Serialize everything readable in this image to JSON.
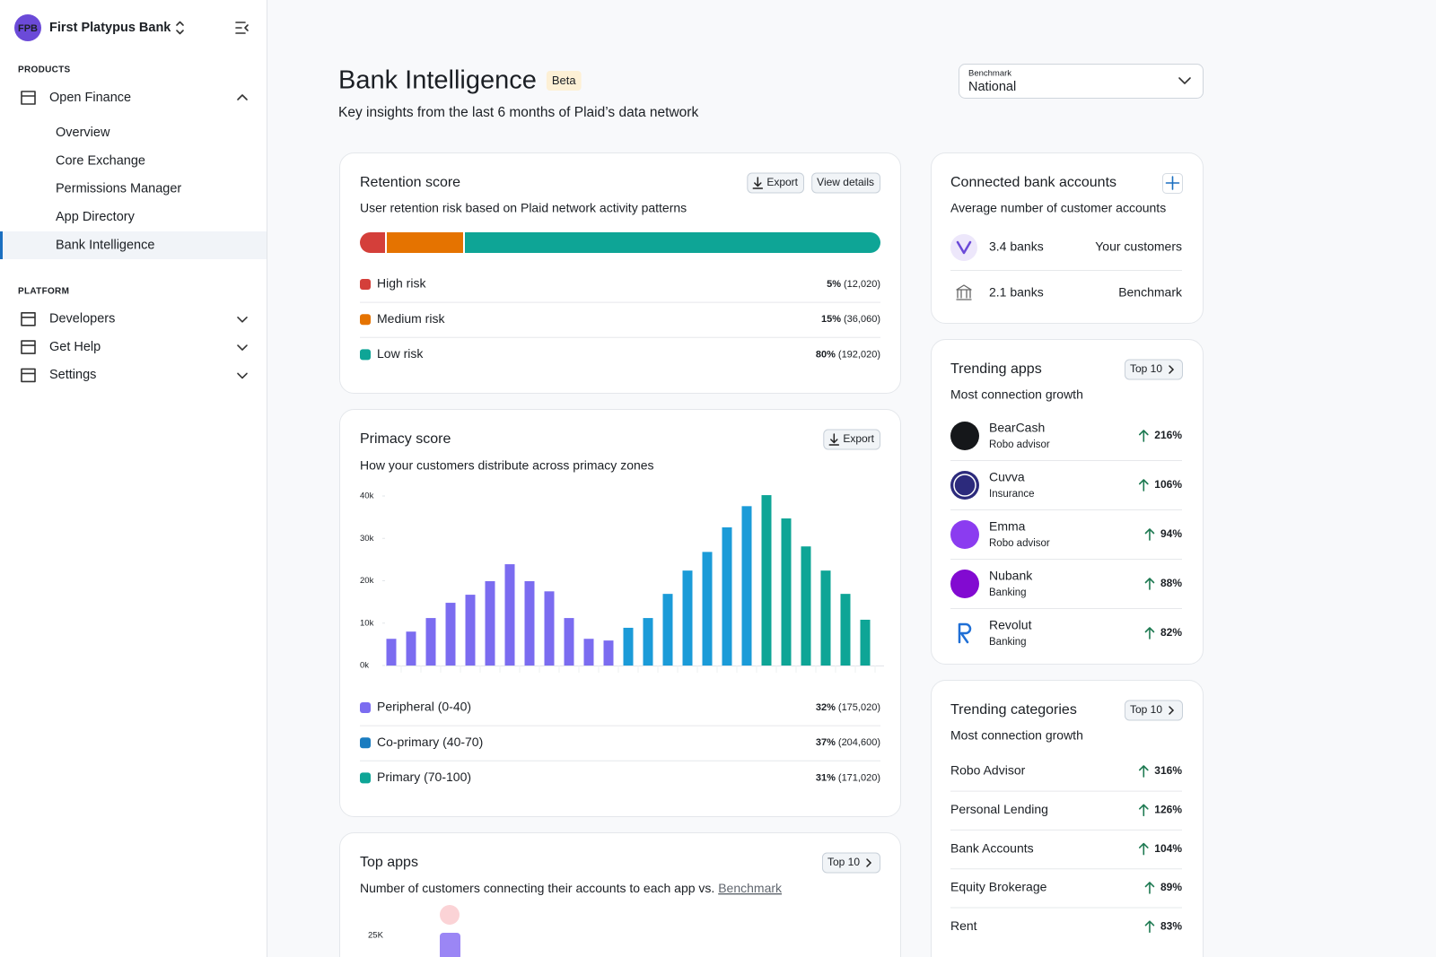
{
  "sidebar": {
    "org_initials": "FPB",
    "org_name": "First Platypus Bank",
    "sections": [
      {
        "heading": "PRODUCTS",
        "items": [
          {
            "label": "Open Finance",
            "expanded": true,
            "children": [
              {
                "label": "Overview"
              },
              {
                "label": "Core Exchange"
              },
              {
                "label": "Permissions Manager"
              },
              {
                "label": "App Directory"
              },
              {
                "label": "Bank Intelligence",
                "active": true
              }
            ]
          }
        ]
      },
      {
        "heading": "PLATFORM",
        "items": [
          {
            "label": "Developers",
            "expanded": false
          },
          {
            "label": "Get Help",
            "expanded": false
          },
          {
            "label": "Settings",
            "expanded": false
          }
        ]
      }
    ]
  },
  "header": {
    "title": "Bank Intelligence",
    "badge": "Beta",
    "subtitle": "Key insights from the last 6 months of Plaid’s data network",
    "benchmark_label": "Benchmark",
    "benchmark_value": "National"
  },
  "chart_data": [
    {
      "type": "stacked-bar",
      "title": "Retention score",
      "buttons": [
        "Export",
        "View details"
      ],
      "description": "User retention risk based on Plaid network activity patterns",
      "xlim": [
        0,
        100
      ],
      "series": [
        {
          "name": "High risk",
          "color": "#d43f3a",
          "values": [
            5
          ],
          "value_labels": [
            "5%"
          ],
          "count_labels": [
            "(12,020)"
          ]
        },
        {
          "name": "Medium risk",
          "color": "#e57300",
          "values": [
            15
          ],
          "value_labels": [
            "15%"
          ],
          "count_labels": [
            "(36,060)"
          ]
        },
        {
          "name": "Low risk",
          "color": "#0ea596",
          "values": [
            80
          ],
          "value_labels": [
            "80%"
          ],
          "count_labels": [
            "(192,020)"
          ]
        }
      ]
    },
    {
      "type": "bar",
      "title": "Primacy score",
      "buttons": [
        "Export"
      ],
      "description": "How your customers distribute across primacy zones",
      "ylim": [
        0,
        40000
      ],
      "yticks": [
        {
          "value": 0,
          "label": "0k"
        },
        {
          "value": 10000,
          "label": "10k"
        },
        {
          "value": 20000,
          "label": "20k"
        },
        {
          "value": 30000,
          "label": "30k"
        },
        {
          "value": 40000,
          "label": "40k"
        }
      ],
      "series": [
        {
          "name": "Peripheral (0-40)",
          "color": "#7b6cf0",
          "share_label": "32%",
          "count_label": "(175,020)",
          "values": [
            6300,
            8000,
            11200,
            14800,
            16700,
            19900,
            23900,
            19900,
            17500,
            11200,
            6300,
            5900
          ]
        },
        {
          "name": "Co-primary (40-70)",
          "color": "#1b9bd8",
          "legend_color": "#1a7cc0",
          "share_label": "37%",
          "count_label": "(204,600)",
          "values": [
            8900,
            11200,
            16900,
            22400,
            26800,
            32600,
            37600
          ]
        },
        {
          "name": "Primary (70-100)",
          "color": "#0ea596",
          "share_label": "31%",
          "count_label": "(171,020)",
          "values": [
            40200,
            34700,
            28100,
            22400,
            16900,
            10800
          ]
        }
      ]
    },
    {
      "type": "bar",
      "title": "Top apps",
      "buttons": [
        "Top 10"
      ],
      "description": "Number of customers connecting their accounts to each app vs. ",
      "description_link": "Benchmark",
      "yticks": [
        {
          "value": 25000,
          "label": "25K"
        }
      ]
    }
  ],
  "connected_accounts": {
    "title": "Connected bank accounts",
    "description": "Average number of customer accounts",
    "rows": [
      {
        "value": "3.4 banks",
        "label": "Your customers"
      },
      {
        "value": "2.1 banks",
        "label": "Benchmark"
      }
    ]
  },
  "trending_apps": {
    "title": "Trending apps",
    "button": "Top 10",
    "description": "Most connection growth",
    "rows": [
      {
        "name": "BearCash",
        "category": "Robo advisor",
        "growth": "216%",
        "logo_color": "#15171a"
      },
      {
        "name": "Cuvva",
        "category": "Insurance",
        "growth": "106%",
        "logo_color": "#2c2a7c"
      },
      {
        "name": "Emma",
        "category": "Robo advisor",
        "growth": "94%",
        "logo_color": "#8b3cf0"
      },
      {
        "name": "Nubank",
        "category": "Banking",
        "growth": "88%",
        "logo_color": "#820ad1"
      },
      {
        "name": "Revolut",
        "category": "Banking",
        "growth": "82%",
        "logo_color": "#1f6fd6"
      }
    ]
  },
  "trending_categories": {
    "title": "Trending categories",
    "button": "Top 10",
    "description": "Most connection growth",
    "rows": [
      {
        "name": "Robo Advisor",
        "growth": "316%"
      },
      {
        "name": "Personal Lending",
        "growth": "126%"
      },
      {
        "name": "Bank Accounts",
        "growth": "104%"
      },
      {
        "name": "Equity Brokerage",
        "growth": "89%"
      },
      {
        "name": "Rent",
        "growth": "83%"
      }
    ]
  }
}
